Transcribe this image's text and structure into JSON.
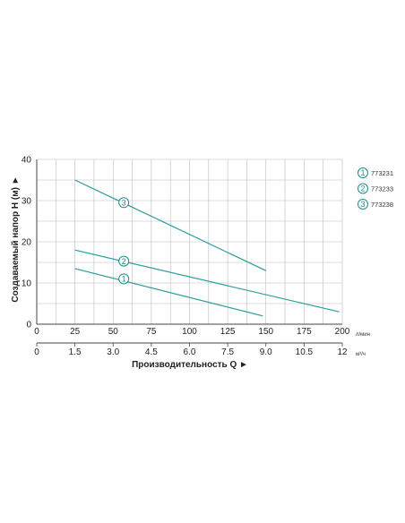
{
  "chart_data": {
    "type": "line",
    "y_axis": {
      "label": "Создаваемый напор Н (м) ►",
      "ticks": [
        0,
        10,
        20,
        30,
        40
      ],
      "range": [
        0,
        40
      ]
    },
    "x_axis_primary": {
      "unit": "л/мин",
      "ticks": [
        0,
        25,
        50,
        75,
        100,
        125,
        150,
        175,
        200
      ],
      "range": [
        0,
        200
      ]
    },
    "x_axis_secondary": {
      "label": "Производительность Q ►",
      "unit": "м³/ч",
      "ticks": [
        "0",
        "1.5",
        "3.0",
        "4.5",
        "6.0",
        "7.5",
        "9.0",
        "10.5",
        "12"
      ]
    },
    "grid": true,
    "legend_position": "right",
    "colors": {
      "line": "#2a9d9d",
      "grid": "#bbbbbb",
      "axis": "#444444",
      "marker": "#1d8c8c"
    },
    "series": [
      {
        "name": "773231",
        "marker": "1",
        "x": [
          25,
          148
        ],
        "y": [
          13.5,
          2.0
        ],
        "marker_at": [
          57,
          11.0
        ]
      },
      {
        "name": "773233",
        "marker": "2",
        "x": [
          25,
          198
        ],
        "y": [
          18,
          3.0
        ],
        "marker_at": [
          57,
          15.3
        ]
      },
      {
        "name": "773238",
        "marker": "3",
        "x": [
          25,
          150
        ],
        "y": [
          35,
          13.0
        ],
        "marker_at": [
          57,
          29.5
        ]
      }
    ]
  }
}
